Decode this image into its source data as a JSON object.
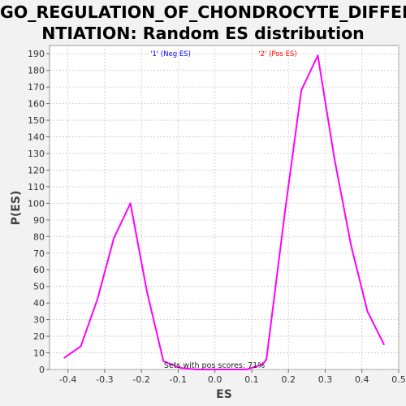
{
  "chart_data": {
    "type": "line",
    "title_lines": [
      "GO_REGULATION_OF_CHONDROCYTE_DIFFERE",
      "NTIATION: Random ES distribution"
    ],
    "xlabel": "ES",
    "ylabel": "P(ES)",
    "xlim": [
      -0.45,
      0.5
    ],
    "ylim": [
      0,
      195
    ],
    "x_ticks": [
      "-0.4",
      "-0.3",
      "-0.2",
      "-0.1",
      "0.0",
      "0.1",
      "0.2",
      "0.3",
      "0.4",
      "0.5"
    ],
    "y_ticks": [
      "0",
      "10",
      "20",
      "30",
      "40",
      "50",
      "60",
      "70",
      "80",
      "90",
      "100",
      "110",
      "120",
      "130",
      "140",
      "150",
      "160",
      "170",
      "180",
      "190"
    ],
    "grid": true,
    "legend": [
      {
        "label": "'1' (Neg ES)",
        "color": "#0000ff"
      },
      {
        "label": "'2' (Pos ES)",
        "color": "#ff0000"
      }
    ],
    "series": [
      {
        "color": "#ff00ff",
        "x": [
          -0.41,
          -0.365,
          -0.32,
          -0.275,
          -0.23,
          -0.185,
          -0.14,
          -0.095,
          -0.05,
          -0.005,
          0.04,
          0.085,
          0.13,
          0.14,
          0.19,
          0.235,
          0.28,
          0.325,
          0.37,
          0.415,
          0.46
        ],
        "y": [
          7,
          14,
          42,
          79,
          100,
          47,
          5,
          1,
          0,
          0,
          0,
          0,
          3,
          6,
          94,
          168,
          189,
          127,
          75,
          35,
          15
        ]
      }
    ],
    "annotation": "Sets with pos scores: 71%",
    "background_color": "#ffffff",
    "grid_color": "#c8c8c8"
  }
}
